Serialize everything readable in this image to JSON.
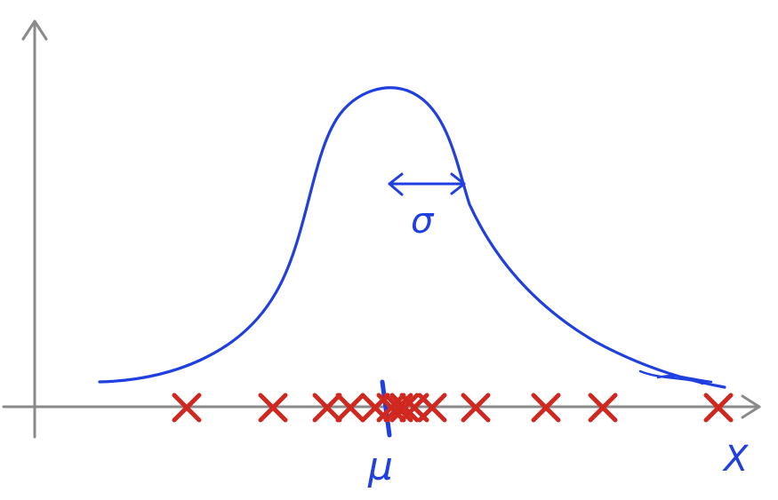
{
  "diagram": {
    "type": "gaussian-distribution-sketch",
    "labels": {
      "x_axis": "X",
      "mean": "μ",
      "std_dev": "σ"
    },
    "sample_count": 14,
    "colors": {
      "axes": "#8a8a8a",
      "curve": "#1f3fe0",
      "samples": "#d0281f"
    }
  }
}
